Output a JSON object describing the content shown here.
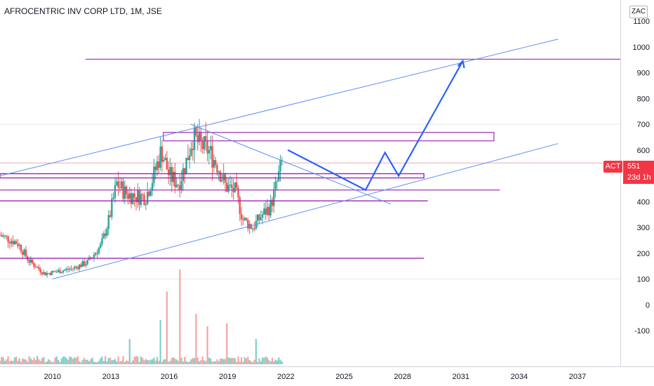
{
  "header": {
    "title": "AFROCENTRIC INV CORP LTD, 1M, JSE",
    "currency": "ZAC"
  },
  "price_badge": {
    "symbol": "ACT",
    "price": "551",
    "countdown": "23d 1h"
  },
  "chart_data": {
    "type": "candlestick",
    "symbol": "ACT",
    "interval": "1M",
    "exchange": "JSE",
    "y_axis": {
      "ticks": [
        1100,
        1000,
        900,
        800,
        700,
        600,
        500,
        400,
        300,
        200,
        100,
        0,
        -100
      ],
      "range": [
        -220,
        1150
      ]
    },
    "x_axis": {
      "ticks": [
        "2010",
        "2013",
        "2016",
        "2019",
        "2022",
        "2025",
        "2028",
        "2031",
        "2034",
        "2037"
      ],
      "range": [
        2007.3,
        2039.2
      ]
    },
    "last_price": 551,
    "price_anchors": [
      [
        2007.3,
        270
      ],
      [
        2008.2,
        240
      ],
      [
        2008.8,
        170
      ],
      [
        2009.6,
        120
      ],
      [
        2010.3,
        130
      ],
      [
        2011.0,
        140
      ],
      [
        2011.8,
        165
      ],
      [
        2012.5,
        230
      ],
      [
        2012.9,
        330
      ],
      [
        2013.3,
        470
      ],
      [
        2013.8,
        430
      ],
      [
        2014.3,
        420
      ],
      [
        2014.8,
        420
      ],
      [
        2015.2,
        500
      ],
      [
        2015.6,
        600
      ],
      [
        2016.0,
        500
      ],
      [
        2016.5,
        470
      ],
      [
        2016.9,
        560
      ],
      [
        2017.2,
        650
      ],
      [
        2017.6,
        620
      ],
      [
        2018.0,
        600
      ],
      [
        2018.5,
        540
      ],
      [
        2018.9,
        460
      ],
      [
        2019.4,
        440
      ],
      [
        2019.8,
        330
      ],
      [
        2020.3,
        300
      ],
      [
        2020.8,
        350
      ],
      [
        2021.2,
        380
      ],
      [
        2021.5,
        460
      ],
      [
        2021.8,
        551
      ]
    ],
    "volume_spikes": [
      {
        "x": 2016.55,
        "v": 150
      },
      {
        "x": 2015.85,
        "v": 115
      },
      {
        "x": 2017.4,
        "v": 80
      },
      {
        "x": 2015.55,
        "v": 70
      },
      {
        "x": 2019.0,
        "v": 65
      },
      {
        "x": 2018.0,
        "v": 60
      },
      {
        "x": 2014.0,
        "v": 40
      },
      {
        "x": 2020.5,
        "v": 40
      }
    ],
    "drawings": {
      "channel_upper": [
        [
          2007.3,
          500
        ],
        [
          2036.0,
          1030
        ]
      ],
      "channel_lower": [
        [
          2010.0,
          100
        ],
        [
          2036.0,
          625
        ]
      ],
      "trendline_down": [
        [
          2017.1,
          700
        ],
        [
          2027.4,
          390
        ]
      ],
      "projection_path": [
        [
          2022.1,
          600
        ],
        [
          2026.1,
          445
        ],
        [
          2027.1,
          590
        ],
        [
          2027.8,
          500
        ],
        [
          2031.1,
          945
        ]
      ],
      "horizontal_levels": [
        {
          "y": 952,
          "from": 2011.7,
          "to": 2039.2,
          "color": "#ab47bc"
        },
        {
          "y": 652,
          "from": 2015.7,
          "to": 2032.7,
          "color": "#ab47bc",
          "band": 12
        },
        {
          "y": 500,
          "from": 2007.3,
          "to": 2029.1,
          "color": "#9c27b0",
          "band": 6
        },
        {
          "y": 445,
          "from": 2007.3,
          "to": 2033.0,
          "color": "#ab47bc"
        },
        {
          "y": 403,
          "from": 2007.3,
          "to": 2029.3,
          "color": "#9c27b0"
        },
        {
          "y": 180,
          "from": 2007.3,
          "to": 2029.1,
          "color": "#9c27b0"
        }
      ]
    }
  }
}
